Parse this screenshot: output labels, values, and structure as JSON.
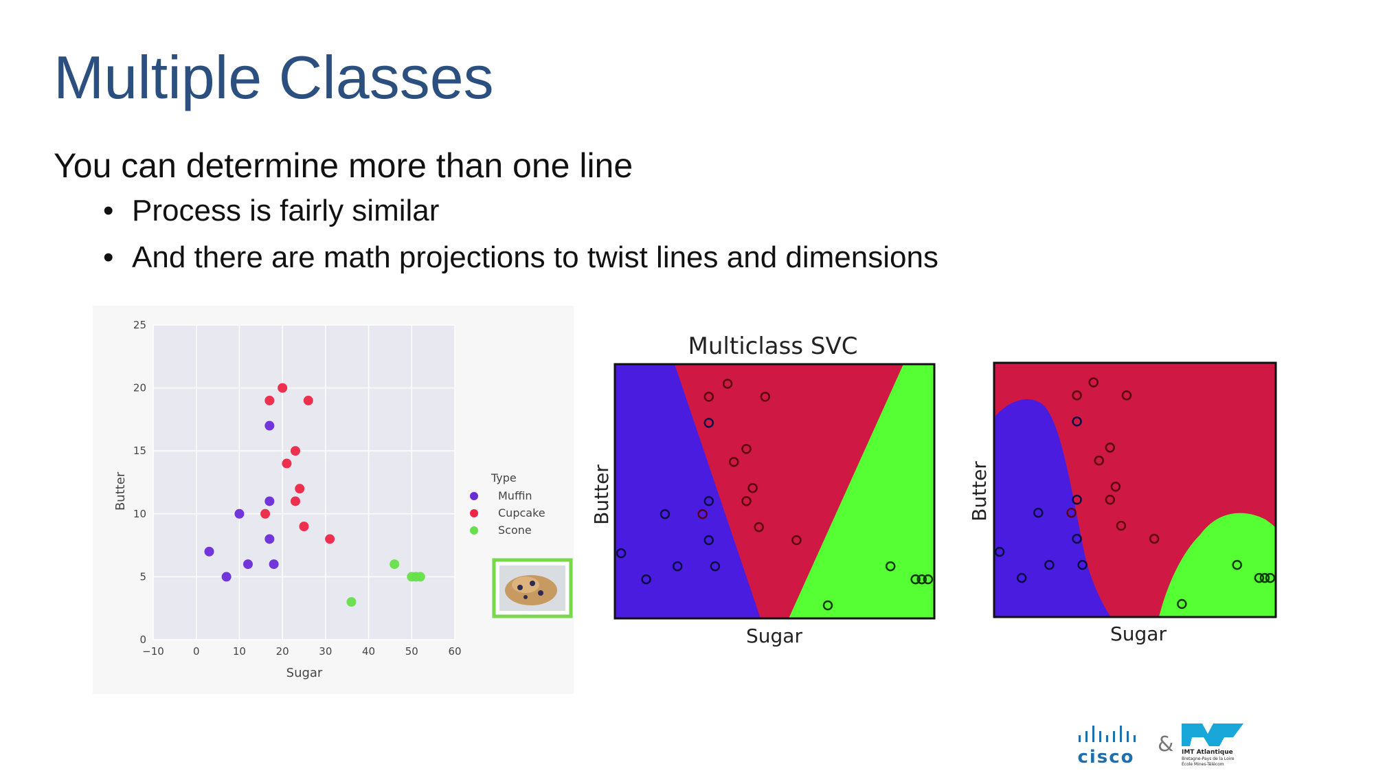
{
  "slide": {
    "title": "Multiple Classes",
    "lead": "You can determine more than one line",
    "bullets": [
      "Process is fairly similar",
      "And there are math projections to twist lines and dimensions"
    ]
  },
  "chart_data": [
    {
      "type": "scatter",
      "xlabel": "Sugar",
      "ylabel": "Butter",
      "xlim": [
        -10,
        60
      ],
      "ylim": [
        0,
        25
      ],
      "xticks": [
        -10,
        0,
        10,
        20,
        30,
        40,
        50,
        60
      ],
      "yticks": [
        0,
        5,
        10,
        15,
        20,
        25
      ],
      "grid": true,
      "legend": {
        "title": "Type",
        "placement": "right"
      },
      "series": [
        {
          "name": "Muffin",
          "color": "#6a2bd9",
          "points": [
            [
              3,
              7
            ],
            [
              7,
              5
            ],
            [
              10,
              10
            ],
            [
              12,
              6
            ],
            [
              17,
              17
            ],
            [
              17,
              11
            ],
            [
              17,
              8
            ],
            [
              18,
              6
            ]
          ]
        },
        {
          "name": "Cupcake",
          "color": "#ee2545",
          "points": [
            [
              17,
              19
            ],
            [
              20,
              20
            ],
            [
              26,
              19
            ],
            [
              23,
              15
            ],
            [
              21,
              14
            ],
            [
              24,
              12
            ],
            [
              23,
              11
            ],
            [
              16,
              10
            ],
            [
              25,
              9
            ],
            [
              31,
              8
            ]
          ]
        },
        {
          "name": "Scone",
          "color": "#66e04a",
          "points": [
            [
              46,
              6
            ],
            [
              50,
              5
            ],
            [
              51,
              5
            ],
            [
              52,
              5
            ],
            [
              36,
              3
            ]
          ]
        }
      ]
    },
    {
      "type": "heatmap",
      "title": "Multiclass SVC",
      "xlabel": "Sugar",
      "ylabel": "Butter",
      "regions": [
        {
          "class": "Muffin",
          "color": "#4a1ce0"
        },
        {
          "class": "Cupcake",
          "color": "#d01845"
        },
        {
          "class": "Scone",
          "color": "#55ff33"
        }
      ]
    },
    {
      "type": "heatmap",
      "title": "",
      "xlabel": "Sugar",
      "ylabel": "Butter",
      "regions": [
        {
          "class": "Muffin",
          "color": "#4a1ce0"
        },
        {
          "class": "Cupcake",
          "color": "#d01845"
        },
        {
          "class": "Scone",
          "color": "#55ff33"
        }
      ]
    }
  ],
  "logos": {
    "partner_left": "cisco",
    "ampersand": "&",
    "partner_right_name": "IMT Atlantique",
    "partner_right_sub1": "Bretagne-Pays de la Loire",
    "partner_right_sub2": "École Mines-Télécom"
  },
  "icons": {
    "bullet": "•",
    "scone_photo": "scone-image-icon"
  }
}
